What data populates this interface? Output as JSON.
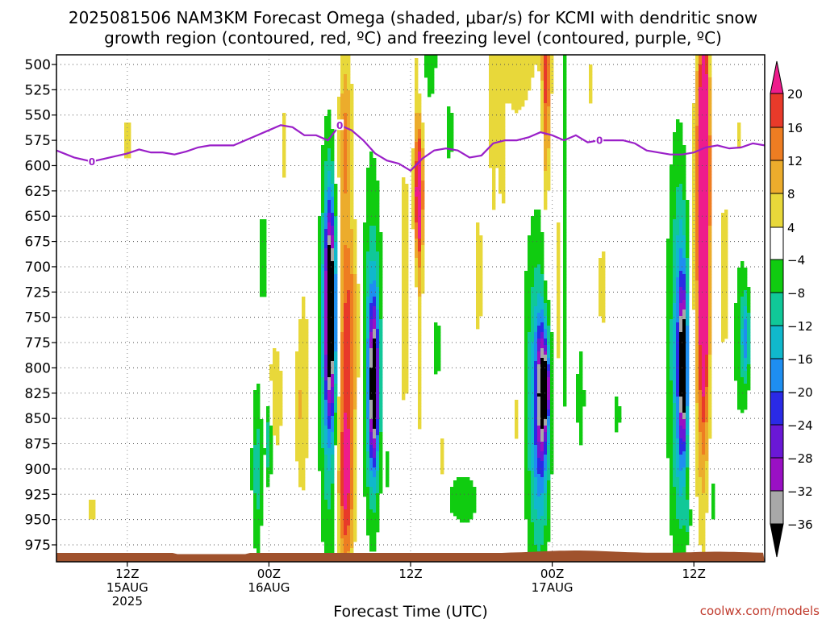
{
  "title_line1": "2025081506 NAM3KM Forecast Omega (shaded, μbar/s) for KCMI with dendritic snow",
  "title_line2": "growth region (contoured, red, ºC) and freezing level (contoured, purple, ºC)",
  "credit": "coolwx.com/models",
  "chart_data": {
    "type": "heatmap",
    "xlabel": "Forecast Time (UTC)",
    "x_range_hours_from_start": [
      0,
      60
    ],
    "y_range_mb": [
      500,
      990
    ],
    "y_inverted": true,
    "grid": true,
    "y_ticks": [
      500,
      525,
      550,
      575,
      600,
      625,
      650,
      675,
      700,
      725,
      750,
      775,
      800,
      825,
      850,
      875,
      900,
      925,
      950,
      975
    ],
    "x_ticks": [
      {
        "hour": 6,
        "line1": "12Z",
        "line2": "15AUG",
        "line3": "2025"
      },
      {
        "hour": 18,
        "line1": "00Z",
        "line2": "16AUG",
        "line3": ""
      },
      {
        "hour": 30,
        "line1": "12Z",
        "line2": "",
        "line3": ""
      },
      {
        "hour": 42,
        "line1": "00Z",
        "line2": "17AUG",
        "line3": ""
      },
      {
        "hour": 54,
        "line1": "12Z",
        "line2": "",
        "line3": ""
      }
    ],
    "colorbar": {
      "levels": [
        20,
        16,
        12,
        8,
        4,
        -4,
        -8,
        -12,
        -16,
        -20,
        -24,
        -28,
        -32,
        -36
      ],
      "colors": {
        "over20": "#ee1c8c",
        "16to20": "#e83a2a",
        "12to16": "#ee7d22",
        "8to12": "#ecac2c",
        "4to8": "#e8d83a",
        "neutral": "#ffffff",
        "m8tom4": "#10cc10",
        "m12tom8": "#10c898",
        "m16tom12": "#10b8cc",
        "m20tom16": "#1e8ef0",
        "m24tom20": "#2a2ae6",
        "m28tom24": "#6a18d6",
        "m32tom28": "#9a10c4",
        "m36tom32": "#a8a8a8",
        "below36": "#000000"
      }
    },
    "freezing_level": {
      "label": "0",
      "color": "#9a1fc8",
      "points": [
        [
          0,
          585
        ],
        [
          1.5,
          592
        ],
        [
          3,
          596
        ],
        [
          4.5,
          592
        ],
        [
          6,
          588
        ],
        [
          7,
          584
        ],
        [
          8,
          587
        ],
        [
          9,
          587
        ],
        [
          10,
          589
        ],
        [
          11,
          586
        ],
        [
          12,
          582
        ],
        [
          13,
          580
        ],
        [
          15,
          580
        ],
        [
          16,
          575
        ],
        [
          17,
          570
        ],
        [
          18,
          565
        ],
        [
          19,
          560
        ],
        [
          20,
          562
        ],
        [
          21,
          570
        ],
        [
          22,
          570
        ],
        [
          23,
          575
        ],
        [
          24,
          560
        ],
        [
          25,
          565
        ],
        [
          26,
          575
        ],
        [
          27,
          588
        ],
        [
          28,
          595
        ],
        [
          29,
          598
        ],
        [
          30,
          605
        ],
        [
          31,
          593
        ],
        [
          32,
          585
        ],
        [
          33,
          583
        ],
        [
          34,
          585
        ],
        [
          35,
          592
        ],
        [
          36,
          590
        ],
        [
          37,
          578
        ],
        [
          38,
          575
        ],
        [
          39,
          575
        ],
        [
          40,
          572
        ],
        [
          41,
          567
        ],
        [
          42,
          570
        ],
        [
          43,
          575
        ],
        [
          44,
          570
        ],
        [
          45,
          577
        ],
        [
          46,
          575
        ],
        [
          47,
          575
        ],
        [
          48,
          575
        ],
        [
          49,
          578
        ],
        [
          50,
          585
        ],
        [
          51,
          587
        ],
        [
          52,
          589
        ],
        [
          53,
          589
        ],
        [
          54,
          587
        ],
        [
          55,
          582
        ],
        [
          56,
          580
        ],
        [
          57,
          583
        ],
        [
          58,
          582
        ],
        [
          59,
          578
        ],
        [
          60,
          580
        ]
      ],
      "label_hours": [
        3,
        24,
        46
      ]
    },
    "features": [
      {
        "hour": 3.0,
        "p": 940,
        "hw": 0.25,
        "hp": 30,
        "val": 6
      },
      {
        "hour": 6.0,
        "p": 575,
        "hw": 0.35,
        "hp": 35,
        "val": 6
      },
      {
        "hour": 17.0,
        "p": 900,
        "hw": 0.5,
        "hp": 90,
        "val": -10
      },
      {
        "hour": 18.0,
        "p": 870,
        "hw": 0.3,
        "hp": 45,
        "val": -14
      },
      {
        "hour": 17.5,
        "p": 690,
        "hw": 0.5,
        "hp": 55,
        "val": -7
      },
      {
        "hour": 18.5,
        "p": 830,
        "hw": 0.7,
        "hp": 60,
        "val": 8
      },
      {
        "hour": 19.2,
        "p": 580,
        "hw": 0.2,
        "hp": 60,
        "val": 6
      },
      {
        "hour": 20.5,
        "p": 840,
        "hw": 0.35,
        "hp": 80,
        "val": 6
      },
      {
        "hour": 21.0,
        "p": 820,
        "hw": 0.45,
        "hp": 140,
        "val": 6
      },
      {
        "hour": 23.1,
        "p": 780,
        "hw": 0.85,
        "hp": 210,
        "val": -14
      },
      {
        "hour": 23.2,
        "p": 740,
        "hw": 0.45,
        "hp": 100,
        "val": -40
      },
      {
        "hour": 24.3,
        "p": 650,
        "hw": 0.9,
        "hp": 180,
        "val": 7
      },
      {
        "hour": 24.5,
        "p": 570,
        "hw": 0.5,
        "hp": 80,
        "val": 8
      },
      {
        "hour": 24.5,
        "p": 910,
        "hw": 0.7,
        "hp": 100,
        "val": 22
      },
      {
        "hour": 24.8,
        "p": 760,
        "hw": 0.9,
        "hp": 90,
        "val": 13
      },
      {
        "hour": 26.7,
        "p": 760,
        "hw": 1.0,
        "hp": 220,
        "val": -7
      },
      {
        "hour": 26.8,
        "p": 810,
        "hw": 0.6,
        "hp": 110,
        "val": -16
      },
      {
        "hour": 26.9,
        "p": 820,
        "hw": 0.35,
        "hp": 70,
        "val": -26
      },
      {
        "hour": 28.0,
        "p": 900,
        "hw": 0.2,
        "hp": 20,
        "val": -7
      },
      {
        "hour": 29.5,
        "p": 720,
        "hw": 0.5,
        "hp": 190,
        "val": 6
      },
      {
        "hour": 30.7,
        "p": 610,
        "hw": 0.45,
        "hp": 90,
        "val": 14
      },
      {
        "hour": 30.7,
        "p": 630,
        "hw": 0.28,
        "hp": 50,
        "val": 18
      },
      {
        "hour": 30.8,
        "p": 770,
        "hw": 0.25,
        "hp": 150,
        "val": 6
      },
      {
        "hour": 30.4,
        "p": 510,
        "hw": 0.2,
        "hp": 40,
        "val": 6
      },
      {
        "hour": 31.5,
        "p": 410,
        "hw": 1.2,
        "hp": 170,
        "val": -7
      },
      {
        "hour": 32.2,
        "p": 780,
        "hw": 0.45,
        "hp": 35,
        "val": -7
      },
      {
        "hour": 32.6,
        "p": 890,
        "hw": 0.25,
        "hp": 35,
        "val": 6
      },
      {
        "hour": 33.3,
        "p": 568,
        "hw": 0.35,
        "hp": 32,
        "val": -7
      },
      {
        "hour": 34.5,
        "p": 930,
        "hw": 1.6,
        "hp": 30,
        "val": -7
      },
      {
        "hour": 35.8,
        "p": 710,
        "hw": 0.35,
        "hp": 170,
        "val": 5
      },
      {
        "hour": 37.0,
        "p": 560,
        "hw": 0.45,
        "hp": 160,
        "val": 5
      },
      {
        "hour": 37.8,
        "p": 600,
        "hw": 0.3,
        "hp": 50,
        "val": 6
      },
      {
        "hour": 39.0,
        "p": 850,
        "hw": 0.4,
        "hp": 60,
        "val": 6
      },
      {
        "hour": 39.3,
        "p": 470,
        "hw": 2.2,
        "hp": 110,
        "val": 7
      },
      {
        "hour": 40.6,
        "p": 820,
        "hw": 1.2,
        "hp": 200,
        "val": -9
      },
      {
        "hour": 41.0,
        "p": 850,
        "hw": 0.7,
        "hp": 110,
        "val": -15
      },
      {
        "hour": 41.2,
        "p": 820,
        "hw": 0.45,
        "hp": 60,
        "val": -24
      },
      {
        "hour": 41.5,
        "p": 820,
        "hw": 0.2,
        "hp": 25,
        "val": -35
      },
      {
        "hour": 41.5,
        "p": 500,
        "hw": 0.4,
        "hp": 90,
        "val": 12
      },
      {
        "hour": 41.5,
        "p": 600,
        "hw": 0.25,
        "hp": 150,
        "val": 7
      },
      {
        "hour": 42.5,
        "p": 730,
        "hw": 0.25,
        "hp": 130,
        "val": 6
      },
      {
        "hour": 43.0,
        "p": 620,
        "hw": 0.2,
        "hp": 300,
        "val": -7
      },
      {
        "hour": 44.4,
        "p": 830,
        "hw": 0.4,
        "hp": 60,
        "val": -7
      },
      {
        "hour": 45.2,
        "p": 520,
        "hw": 0.3,
        "hp": 30,
        "val": 6
      },
      {
        "hour": 46.2,
        "p": 720,
        "hw": 0.25,
        "hp": 100,
        "val": 6
      },
      {
        "hour": 47.5,
        "p": 845,
        "hw": 0.3,
        "hp": 25,
        "val": -7
      },
      {
        "hour": 52.5,
        "p": 780,
        "hw": 0.9,
        "hp": 230,
        "val": -9
      },
      {
        "hour": 53.0,
        "p": 790,
        "hw": 0.55,
        "hp": 140,
        "val": -17
      },
      {
        "hour": 53.1,
        "p": 800,
        "hw": 0.3,
        "hp": 70,
        "val": -26
      },
      {
        "hour": 53.2,
        "p": 800,
        "hw": 0.12,
        "hp": 25,
        "val": -34
      },
      {
        "hour": 53.5,
        "p": 950,
        "hw": 0.25,
        "hp": 20,
        "val": -7
      },
      {
        "hour": 54.5,
        "p": 700,
        "hw": 0.7,
        "hp": 230,
        "val": 6
      },
      {
        "hour": 54.8,
        "p": 560,
        "hw": 0.55,
        "hp": 90,
        "val": 12
      },
      {
        "hour": 54.8,
        "p": 720,
        "hw": 0.55,
        "hp": 200,
        "val": 16
      },
      {
        "hour": 54.9,
        "p": 640,
        "hw": 0.35,
        "hp": 150,
        "val": 22
      },
      {
        "hour": 55.5,
        "p": 930,
        "hw": 0.3,
        "hp": 40,
        "val": -7
      },
      {
        "hour": 56.6,
        "p": 710,
        "hw": 0.6,
        "hp": 110,
        "val": 6
      },
      {
        "hour": 57.8,
        "p": 570,
        "hw": 0.2,
        "hp": 30,
        "val": 5
      },
      {
        "hour": 58.0,
        "p": 770,
        "hw": 0.7,
        "hp": 90,
        "val": -8
      },
      {
        "hour": 58.4,
        "p": 770,
        "hw": 0.3,
        "hp": 40,
        "val": -13
      }
    ]
  }
}
